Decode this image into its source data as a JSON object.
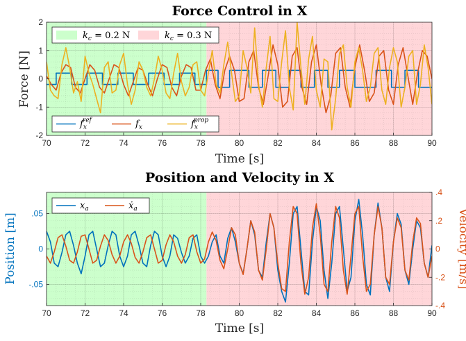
{
  "chart_data": [
    {
      "type": "line",
      "title": "Force Control in X",
      "xlabel": "Time [s]",
      "ylabel": "Force [N]",
      "xlim": [
        70,
        90
      ],
      "ylim": [
        -2,
        2
      ],
      "xticks": [
        70,
        72,
        74,
        76,
        78,
        80,
        82,
        84,
        86,
        88,
        90
      ],
      "yticks": [
        -2,
        -1,
        0,
        1,
        2
      ],
      "grid": true,
      "regions": [
        {
          "label": "k_c = 0.2 N",
          "label_text": "kc = 0.2 N",
          "x0": 70,
          "x1": 78.3,
          "color": "#ccffcc"
        },
        {
          "label": "k_c = 0.3 N",
          "label_text": "kc = 0.3 N",
          "x0": 78.3,
          "x1": 90,
          "color": "#ffd6d9"
        }
      ],
      "legend_position": "bottom-left",
      "series": [
        {
          "name": "f_x^ref",
          "name_main": "f",
          "name_sub": "x",
          "name_sup": "ref",
          "color": "#0072bd",
          "x": [
            70,
            70.5,
            70.5,
            71.3,
            71.3,
            72.1,
            72.1,
            72.9,
            72.9,
            73.7,
            73.7,
            74.5,
            74.5,
            75.3,
            75.3,
            76.1,
            76.1,
            76.9,
            76.9,
            77.7,
            77.7,
            78.3,
            78.3,
            78.9,
            78.9,
            79.5,
            79.5,
            80.5,
            80.5,
            81.2,
            81.2,
            81.9,
            81.9,
            82.6,
            82.6,
            83.2,
            83.2,
            83.9,
            83.9,
            84.6,
            84.6,
            85.2,
            85.2,
            86,
            86,
            87.1,
            87.1,
            87.9,
            87.9,
            88.6,
            88.6,
            89.3,
            89.3,
            90
          ],
          "values": [
            -0.2,
            -0.2,
            0.2,
            0.2,
            -0.2,
            -0.2,
            0.2,
            0.2,
            -0.2,
            -0.2,
            0.2,
            0.2,
            -0.2,
            -0.2,
            0.2,
            0.2,
            -0.2,
            -0.2,
            0.2,
            0.2,
            -0.2,
            -0.2,
            0.3,
            0.3,
            -0.3,
            -0.3,
            0.3,
            0.3,
            -0.3,
            -0.3,
            0.3,
            0.3,
            -0.3,
            -0.3,
            0.3,
            0.3,
            -0.3,
            -0.3,
            0.3,
            0.3,
            -0.3,
            -0.3,
            0.3,
            0.3,
            -0.3,
            -0.3,
            0.3,
            0.3,
            -0.3,
            -0.3,
            0.3,
            0.3,
            -0.3,
            -0.3
          ]
        },
        {
          "name": "f_x",
          "name_main": "f",
          "name_sub": "x",
          "name_sup": "",
          "color": "#d95319",
          "x": [
            70,
            70.25,
            70.5,
            70.75,
            71,
            71.25,
            71.5,
            71.75,
            72,
            72.25,
            72.5,
            72.75,
            73,
            73.25,
            73.5,
            73.75,
            74,
            74.25,
            74.5,
            74.75,
            75,
            75.25,
            75.5,
            75.75,
            76,
            76.25,
            76.5,
            76.75,
            77,
            77.25,
            77.5,
            77.75,
            78,
            78.25,
            78.5,
            78.75,
            79,
            79.25,
            79.5,
            79.75,
            80,
            80.25,
            80.5,
            80.75,
            81,
            81.25,
            81.5,
            81.75,
            82,
            82.25,
            82.5,
            82.75,
            83,
            83.25,
            83.5,
            83.75,
            84,
            84.25,
            84.5,
            84.75,
            85,
            85.25,
            85.5,
            85.75,
            86,
            86.25,
            86.5,
            86.75,
            87,
            87.25,
            87.5,
            87.75,
            88,
            88.25,
            88.5,
            88.75,
            89,
            89.25,
            89.5,
            89.75,
            90
          ],
          "values": [
            0.1,
            -0.2,
            -0.4,
            0.2,
            0.5,
            0.4,
            -0.3,
            -0.5,
            0,
            0.5,
            0.3,
            -0.3,
            -0.5,
            0,
            0.5,
            0.4,
            -0.2,
            -0.6,
            -0.1,
            0.4,
            0.3,
            -0.2,
            -0.6,
            0,
            0.5,
            0.4,
            -0.3,
            -0.6,
            0.1,
            0.5,
            0.4,
            -0.4,
            -0.4,
            0.3,
            0.7,
            -0.2,
            -0.7,
            0.3,
            0.8,
            0.3,
            -0.8,
            -0.7,
            0.6,
            1.0,
            -0.3,
            -0.9,
            0.1,
            1.2,
            0.5,
            -1.0,
            -0.8,
            0.8,
            1.1,
            -0.3,
            -0.9,
            0.6,
            1.2,
            -0.2,
            -1.2,
            -0.6,
            0.9,
            1.1,
            -0.3,
            -1.0,
            0.4,
            1.2,
            0.3,
            -0.8,
            -0.5,
            0.8,
            1.0,
            -0.4,
            -0.9,
            0.5,
            1.1,
            0.1,
            -0.9,
            0.2,
            1.0,
            0.8,
            0
          ]
        },
        {
          "name": "f_x^prop",
          "name_main": "f",
          "name_sub": "x",
          "name_sup": "prop",
          "color": "#edb120",
          "x": [
            70,
            70.2,
            70.4,
            70.6,
            70.8,
            71,
            71.2,
            71.4,
            71.6,
            71.8,
            72,
            72.2,
            72.4,
            72.6,
            72.8,
            73,
            73.2,
            73.4,
            73.6,
            73.8,
            74,
            74.2,
            74.4,
            74.6,
            74.8,
            75,
            75.2,
            75.4,
            75.6,
            75.8,
            76,
            76.2,
            76.4,
            76.6,
            76.8,
            77,
            77.2,
            77.4,
            77.6,
            77.8,
            78,
            78.2,
            78.4,
            78.6,
            78.8,
            79,
            79.2,
            79.4,
            79.6,
            79.8,
            80,
            80.2,
            80.4,
            80.6,
            80.8,
            81,
            81.2,
            81.4,
            81.6,
            81.8,
            82,
            82.2,
            82.4,
            82.6,
            82.8,
            83,
            83.2,
            83.4,
            83.6,
            83.8,
            84,
            84.2,
            84.4,
            84.6,
            84.8,
            85,
            85.2,
            85.4,
            85.6,
            85.8,
            86,
            86.2,
            86.4,
            86.6,
            86.8,
            87,
            87.2,
            87.4,
            87.6,
            87.8,
            88,
            88.2,
            88.4,
            88.6,
            88.8,
            89,
            89.2,
            89.4,
            89.6,
            89.8,
            90
          ],
          "values": [
            0.6,
            -0.4,
            -0.6,
            -0.7,
            0.5,
            1.1,
            0.4,
            -0.5,
            -0.1,
            -0.8,
            0.8,
            0.2,
            -0.2,
            -0.7,
            -1.2,
            0.4,
            0.6,
            -0.5,
            -0.4,
            0.5,
            0.9,
            -0.2,
            -0.9,
            -0.4,
            0.6,
            0.3,
            -0.3,
            -0.6,
            0,
            0.8,
            0.3,
            -0.5,
            -0.7,
            0.2,
            0.9,
            -0.1,
            -0.6,
            -0.3,
            0.5,
            0.6,
            -0.4,
            -0.6,
            0.2,
            1.0,
            -0.2,
            -0.5,
            0.5,
            1.3,
            0.2,
            -0.8,
            -0.6,
            1.0,
            0.4,
            -0.5,
            1.8,
            -0.2,
            -1.0,
            0.4,
            1.5,
            -0.7,
            -0.8,
            0.6,
            1.7,
            -0.3,
            -1.1,
            2.0,
            0.4,
            -0.9,
            0.7,
            1.5,
            -0.4,
            -1.0,
            0.7,
            0.6,
            -1.8,
            -0.7,
            0.9,
            1.2,
            -0.3,
            -1.0,
            0.6,
            1.1,
            0.3,
            -0.8,
            -0.3,
            0.9,
            1.1,
            -0.4,
            -0.9,
            0.4,
            1.1,
            0.6,
            -1.0,
            -0.3,
            0.8,
            1.0,
            -0.9,
            -0.2,
            1.2,
            0.4,
            -0.9
          ]
        }
      ]
    },
    {
      "type": "line",
      "title": "Position and Velocity in X",
      "xlabel": "Time [s]",
      "ylabel": "Position [m]",
      "ylabel_right": "Velocity [m/s]",
      "xlim": [
        70,
        90
      ],
      "ylim": [
        -0.08,
        0.08
      ],
      "ylim_right": [
        -0.4,
        0.4
      ],
      "xticks": [
        70,
        72,
        74,
        76,
        78,
        80,
        82,
        84,
        86,
        88,
        90
      ],
      "yticks": [
        -0.05,
        0,
        0.05
      ],
      "yticks_right": [
        -0.4,
        -0.2,
        0,
        0.2,
        0.4
      ],
      "grid": true,
      "regions": [
        {
          "x0": 70,
          "x1": 78.3,
          "color": "#ccffcc"
        },
        {
          "x0": 78.3,
          "x1": 90,
          "color": "#ffd6d9"
        }
      ],
      "legend_position": "top-left",
      "series": [
        {
          "name": "x_a",
          "name_main": "x",
          "name_sub": "a",
          "axis": "left",
          "color": "#0072bd",
          "x": [
            70,
            70.2,
            70.4,
            70.6,
            70.8,
            71,
            71.2,
            71.4,
            71.6,
            71.8,
            72,
            72.2,
            72.4,
            72.6,
            72.8,
            73,
            73.2,
            73.4,
            73.6,
            73.8,
            74,
            74.2,
            74.4,
            74.6,
            74.8,
            75,
            75.2,
            75.4,
            75.6,
            75.8,
            76,
            76.2,
            76.4,
            76.6,
            76.8,
            77,
            77.2,
            77.4,
            77.6,
            77.8,
            78,
            78.2,
            78.4,
            78.6,
            78.8,
            79,
            79.2,
            79.4,
            79.6,
            79.8,
            80,
            80.2,
            80.4,
            80.6,
            80.8,
            81,
            81.2,
            81.4,
            81.6,
            81.8,
            82,
            82.2,
            82.4,
            82.6,
            82.8,
            83,
            83.2,
            83.4,
            83.6,
            83.8,
            84,
            84.2,
            84.4,
            84.6,
            84.8,
            85,
            85.2,
            85.4,
            85.6,
            85.8,
            86,
            86.2,
            86.4,
            86.6,
            86.8,
            87,
            87.2,
            87.4,
            87.6,
            87.8,
            88,
            88.2,
            88.4,
            88.6,
            88.8,
            89,
            89.2,
            89.4,
            89.6,
            89.8,
            90
          ],
          "values": [
            0.025,
            0.01,
            -0.02,
            -0.025,
            -0.005,
            0.02,
            0.025,
            0.005,
            -0.02,
            -0.035,
            -0.01,
            0.02,
            0.025,
            0,
            -0.025,
            -0.02,
            0.005,
            0.025,
            0.02,
            -0.01,
            -0.025,
            -0.01,
            0.02,
            0.025,
            0.005,
            -0.02,
            -0.025,
            0.005,
            0.025,
            0.02,
            -0.01,
            -0.025,
            -0.01,
            0.02,
            0.015,
            -0.005,
            -0.02,
            -0.01,
            0.015,
            0.02,
            -0.01,
            -0.02,
            -0.01,
            0.01,
            0.02,
            -0.01,
            -0.02,
            0.015,
            0.03,
            0.01,
            -0.02,
            -0.035,
            0,
            0.04,
            0.02,
            -0.03,
            -0.04,
            0.01,
            0.05,
            0.03,
            -0.03,
            -0.06,
            -0.075,
            -0.02,
            0.05,
            0.06,
            0,
            -0.06,
            -0.065,
            0.01,
            0.06,
            0.04,
            -0.03,
            -0.07,
            -0.02,
            0.05,
            0.06,
            0,
            -0.06,
            -0.04,
            0.04,
            0.07,
            0.02,
            -0.05,
            -0.065,
            0.02,
            0.065,
            0.03,
            -0.04,
            -0.06,
            0.01,
            0.05,
            0.035,
            -0.03,
            -0.05,
            0,
            0.04,
            0.03,
            -0.02,
            -0.04,
            0.005
          ]
        },
        {
          "name": "ẋ_a",
          "name_main": "ẋ",
          "name_sub": "a",
          "axis": "right",
          "color": "#d95319",
          "x": [
            70,
            70.2,
            70.4,
            70.6,
            70.8,
            71,
            71.2,
            71.4,
            71.6,
            71.8,
            72,
            72.2,
            72.4,
            72.6,
            72.8,
            73,
            73.2,
            73.4,
            73.6,
            73.8,
            74,
            74.2,
            74.4,
            74.6,
            74.8,
            75,
            75.2,
            75.4,
            75.6,
            75.8,
            76,
            76.2,
            76.4,
            76.6,
            76.8,
            77,
            77.2,
            77.4,
            77.6,
            77.8,
            78,
            78.2,
            78.4,
            78.6,
            78.8,
            79,
            79.2,
            79.4,
            79.6,
            79.8,
            80,
            80.2,
            80.4,
            80.6,
            80.8,
            81,
            81.2,
            81.4,
            81.6,
            81.8,
            82,
            82.2,
            82.4,
            82.6,
            82.8,
            83,
            83.2,
            83.4,
            83.6,
            83.8,
            84,
            84.2,
            84.4,
            84.6,
            84.8,
            85,
            85.2,
            85.4,
            85.6,
            85.8,
            86,
            86.2,
            86.4,
            86.6,
            86.8,
            87,
            87.2,
            87.4,
            87.6,
            87.8,
            88,
            88.2,
            88.4,
            88.6,
            88.8,
            89,
            89.2,
            89.4,
            89.6,
            89.8,
            90
          ],
          "values": [
            -0.05,
            -0.1,
            -0.02,
            0.08,
            0.1,
            0.02,
            -0.08,
            -0.1,
            -0.02,
            0.09,
            0.1,
            0,
            -0.1,
            -0.08,
            0.02,
            0.1,
            0.06,
            -0.04,
            -0.1,
            -0.05,
            0.05,
            0.1,
            0.04,
            -0.06,
            -0.1,
            -0.02,
            0.08,
            0.1,
            0,
            -0.1,
            -0.08,
            0.03,
            0.1,
            0.05,
            -0.05,
            -0.1,
            -0.04,
            0.08,
            0.1,
            -0.02,
            -0.1,
            -0.07,
            0.05,
            0.12,
            0.06,
            -0.08,
            -0.14,
            0,
            0.15,
            0.1,
            -0.1,
            -0.18,
            0,
            0.2,
            0.12,
            -0.15,
            -0.22,
            0,
            0.25,
            0.15,
            -0.1,
            -0.28,
            -0.3,
            0.05,
            0.3,
            0.25,
            -0.1,
            -0.32,
            -0.2,
            0.15,
            0.32,
            0.1,
            -0.25,
            -0.3,
            0.05,
            0.3,
            0.22,
            -0.15,
            -0.32,
            -0.05,
            0.25,
            0.3,
            -0.05,
            -0.3,
            -0.25,
            0.1,
            0.3,
            0.15,
            -0.2,
            -0.25,
            0.05,
            0.22,
            0.15,
            -0.15,
            -0.22,
            0.05,
            0.22,
            0.18,
            -0.1,
            -0.2,
            -0.05
          ]
        }
      ]
    }
  ]
}
